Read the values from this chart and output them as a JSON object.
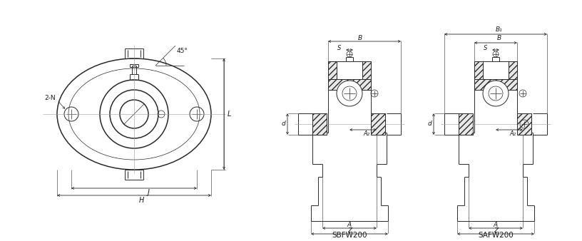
{
  "bg_color": "#ffffff",
  "line_color": "#2a2a2a",
  "dim_color": "#2a2a2a",
  "label_color": "#1a1a1a",
  "title_sbfw": "SBFW200",
  "title_safw": "SAFW200",
  "labels": {
    "angle": "45°",
    "bolt": "2-N",
    "J": "J",
    "H": "H",
    "L": "L",
    "B": "B",
    "B1": "B₁",
    "S": "S",
    "A2": "A₂",
    "A": "A",
    "Z": "Z",
    "d": "d"
  }
}
